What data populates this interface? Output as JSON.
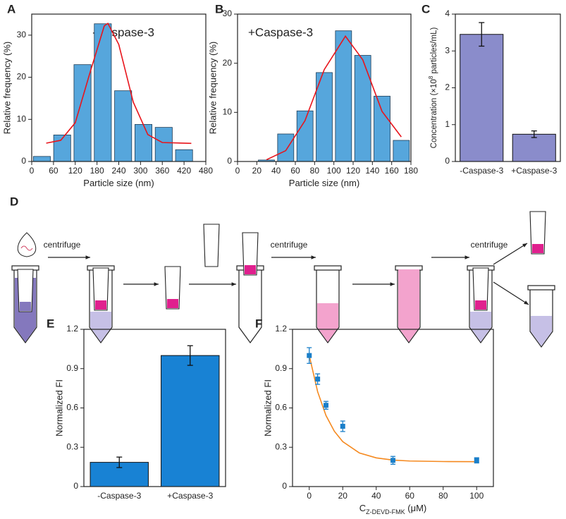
{
  "chart_data": [
    {
      "type": "histogram",
      "label": "A",
      "annotation": "-Caspase-3",
      "xlabel": "Particle size (nm)",
      "ylabel": "Relative frequency (%)",
      "bins": [
        0,
        56,
        112,
        168,
        224,
        280,
        336,
        392,
        448
      ],
      "values": [
        1.2,
        6.3,
        23,
        32.7,
        16.8,
        8.8,
        8.1,
        2.8
      ],
      "color": "#56a6dc",
      "fit": {
        "color": "#e8141b",
        "x": [
          40,
          80,
          120,
          160,
          200,
          210,
          240,
          280,
          320,
          360,
          440
        ],
        "values": [
          4.35,
          5.03,
          9.2,
          20.9,
          32.2,
          32.8,
          27.8,
          14.1,
          6.4,
          4.5,
          4.3
        ]
      },
      "xlim": [
        0,
        480
      ],
      "xticks": [
        0,
        60,
        120,
        180,
        240,
        300,
        360,
        420,
        480
      ],
      "ylim": [
        0,
        35
      ],
      "yticks": [
        0,
        10,
        20,
        30
      ]
    },
    {
      "type": "histogram",
      "label": "B",
      "annotation": "+Caspase-3",
      "xlabel": "Particle size (nm)",
      "ylabel": "Relative frequency (%)",
      "bins": [
        20,
        40,
        60,
        80,
        100,
        120,
        140,
        160,
        180
      ],
      "values": [
        0.3,
        5.6,
        10.3,
        18.1,
        26.6,
        21.6,
        13.3,
        4.3
      ],
      "color": "#56a6dc",
      "fit": {
        "color": "#e8141b",
        "x": [
          30,
          50,
          70,
          90,
          112,
          130,
          150,
          170
        ],
        "values": [
          0.35,
          2.2,
          8.3,
          18.7,
          25.5,
          20.7,
          10.2,
          5.0
        ]
      },
      "xlim": [
        0,
        180
      ],
      "xticks": [
        0,
        20,
        40,
        60,
        80,
        100,
        120,
        140,
        160,
        180
      ],
      "ylim": [
        0,
        30
      ],
      "yticks": [
        0,
        10,
        20,
        30
      ]
    },
    {
      "type": "bar",
      "label": "C",
      "ylabel": [
        "Concentration (×10",
        "8",
        " particles/mL)"
      ],
      "categories": [
        "-Caspase-3",
        "+Caspase-3"
      ],
      "values": [
        3.45,
        0.74
      ],
      "errors": [
        0.32,
        0.09
      ],
      "color": "#8a8ccb",
      "ylim": [
        0,
        4
      ],
      "yticks": [
        0,
        1,
        2,
        3,
        4
      ]
    },
    {
      "type": "bar",
      "label": "E",
      "ylabel": "Normalized FI",
      "categories": [
        "-Caspase-3",
        "+Caspase-3"
      ],
      "values": [
        0.185,
        1.0
      ],
      "errors": [
        0.04,
        0.075
      ],
      "color": "#1882d4",
      "ylim": [
        0,
        1.2
      ],
      "yticks": [
        0,
        0.3,
        0.6,
        0.9,
        1.2
      ]
    },
    {
      "type": "scatter",
      "label": "F",
      "ylabel": "Normalized FI",
      "xlabel": "C",
      "xlabel_sub": "Z-DEVD-FMK",
      "xlabel_unit": " (μM)",
      "x": [
        0,
        5,
        10,
        20,
        50,
        100
      ],
      "values": [
        1.0,
        0.82,
        0.62,
        0.46,
        0.2,
        0.2
      ],
      "errors": [
        0.06,
        0.04,
        0.03,
        0.04,
        0.03,
        0.02
      ],
      "color": "#1a7fc9",
      "fit": {
        "color": "#f5891f",
        "x": [
          0,
          5,
          10,
          15,
          20,
          30,
          40,
          50,
          60,
          80,
          100
        ],
        "values": [
          1.0,
          0.724,
          0.542,
          0.422,
          0.343,
          0.256,
          0.219,
          0.202,
          0.195,
          0.191,
          0.19
        ]
      },
      "xlim": [
        -10,
        110
      ],
      "xticks": [
        0,
        20,
        40,
        60,
        80,
        100
      ],
      "ylim": [
        0,
        1.2
      ],
      "yticks": [
        0,
        0.3,
        0.6,
        0.9,
        1.2
      ]
    }
  ],
  "diagram": {
    "label": "D",
    "steps": [
      "centrifuge",
      "centrifuge",
      "centrifuge"
    ]
  }
}
